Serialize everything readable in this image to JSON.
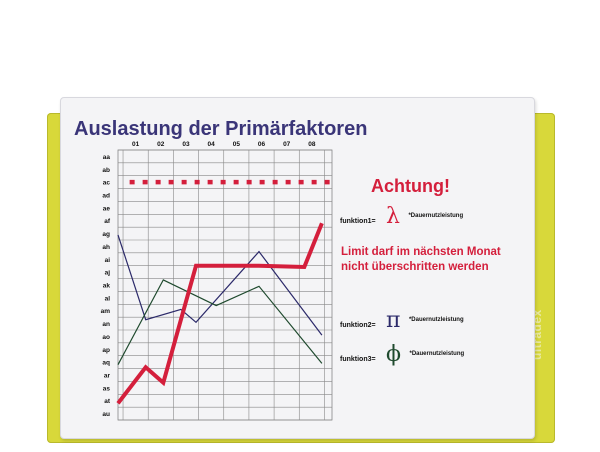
{
  "brand": "ultradex",
  "colors": {
    "title": "#3a3578",
    "grid": "#888888",
    "limit": "#d41f3c",
    "series_thin_1": "#2c2a6a",
    "series_thin_2": "#1f4a2e",
    "series_main": "#d41f3c",
    "warning": "#d41f3c",
    "symbol_green": "#1f4a2e"
  },
  "chart_data": {
    "type": "line",
    "title": "Auslastung der Primärfaktoren",
    "x": [
      "01",
      "02",
      "03",
      "04",
      "05",
      "06",
      "07",
      "08"
    ],
    "y_categories": [
      "aa",
      "ab",
      "ac",
      "ad",
      "ae",
      "af",
      "ag",
      "ah",
      "ai",
      "aj",
      "ak",
      "al",
      "am",
      "an",
      "ao",
      "ap",
      "aq",
      "ar",
      "as",
      "at",
      "au"
    ],
    "xlim": [
      0.3,
      8.8
    ],
    "limit": {
      "y": "ac"
    },
    "series": [
      {
        "color": "#2c2a6a",
        "x": [
          0.3,
          1.4,
          2.8,
          3.4,
          5.9,
          8.4
        ],
        "y": [
          6.1,
          12.7,
          11.9,
          12.9,
          7.4,
          13.9
        ]
      },
      {
        "color": "#1f4a2e",
        "x": [
          0.3,
          2.1,
          4.2,
          5.9,
          8.4
        ],
        "y": [
          16.2,
          9.6,
          11.6,
          10.1,
          16.1
        ]
      },
      {
        "color": "#d41f3c",
        "x": [
          0.3,
          1.4,
          2.1,
          3.4,
          5.9,
          7.7,
          8.4
        ],
        "y": [
          19.2,
          16.4,
          17.6,
          8.5,
          8.5,
          8.6,
          5.2
        ]
      }
    ]
  },
  "warning": {
    "title": "Achtung!",
    "line1": "Limit darf im nächsten Monat",
    "line2": "nicht überschritten werden"
  },
  "functions": [
    {
      "label": "funktion1=",
      "symbol": "λ",
      "note": "*Dauernutzleistung",
      "symbol_color": "#d41f3c"
    },
    {
      "label": "funktion2=",
      "symbol": "π",
      "note": "*Dauernutzleistung",
      "symbol_color": "#2c2a6a"
    },
    {
      "label": "funktion3=",
      "symbol": "ϕ",
      "note": "*Dauernutzleistung",
      "symbol_color": "#1f4a2e"
    }
  ]
}
